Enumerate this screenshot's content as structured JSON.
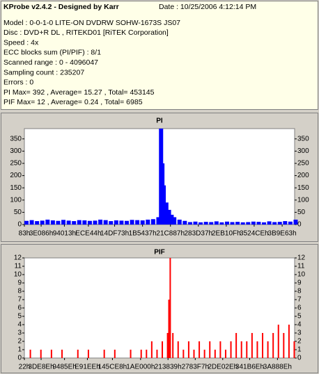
{
  "header": {
    "title": "KProbe v2.4.2 - Designed by Karr",
    "date": "Date : 10/25/2006 4:12:14 PM",
    "lines": [
      "Model : 0-0-1-0 LITE-ON DVDRW SOHW-1673S JS07",
      "Disc : DVD+R DL , RITEKD01 [RiTEK Corporation]",
      "Speed : 4x",
      "ECC blocks sum (PI/PIF) : 8/1",
      "Scanned range : 0 - 4096047",
      "Sampling count : 235207",
      "Errors : 0",
      "PI Max= 392 , Average= 15.27 , Total= 453145",
      "PIF Max= 12 , Average= 0.24 , Total= 6985"
    ]
  },
  "chart_data": [
    {
      "type": "bar",
      "title": "PI",
      "color": "#0000ff",
      "x": [
        0,
        80000,
        160000,
        240000,
        320000,
        400000,
        480000,
        560000,
        640000,
        720000,
        800000,
        880000,
        960000,
        1040000,
        1120000,
        1200000,
        1280000,
        1360000,
        1440000,
        1520000,
        1600000,
        1680000,
        1760000,
        1840000,
        1920000,
        2000000,
        2040000,
        2060000,
        2080000,
        2120000,
        2160000,
        2200000,
        2240000,
        2320000,
        2400000,
        2480000,
        2560000,
        2640000,
        2720000,
        2800000,
        2880000,
        2960000,
        3040000,
        3120000,
        3200000,
        3280000,
        3360000,
        3440000,
        3520000,
        3600000,
        3680000,
        3760000,
        3840000,
        3920000,
        4000000,
        4080000
      ],
      "values": [
        15,
        18,
        14,
        16,
        20,
        17,
        15,
        19,
        16,
        14,
        18,
        17,
        15,
        16,
        20,
        18,
        14,
        17,
        16,
        15,
        19,
        18,
        17,
        20,
        22,
        30,
        392,
        250,
        160,
        90,
        60,
        40,
        30,
        20,
        15,
        10,
        12,
        9,
        11,
        10,
        13,
        9,
        12,
        10,
        11,
        9,
        10,
        12,
        11,
        9,
        13,
        10,
        11,
        14,
        12,
        20
      ],
      "xlim": [
        0,
        4096047
      ],
      "ylim": [
        0,
        392
      ],
      "xticks": [
        {
          "value": 131,
          "label": "83h"
        },
        {
          "value": 254086,
          "label": "3E086h"
        },
        {
          "value": 606227,
          "label": "94013h"
        },
        {
          "value": 970308,
          "label": "ECE44h"
        },
        {
          "value": 1367923,
          "label": "14DF73h"
        },
        {
          "value": 1791031,
          "label": "1B5437h"
        },
        {
          "value": 2214023,
          "label": "21C887h"
        },
        {
          "value": 2637111,
          "label": "283D37h"
        },
        {
          "value": 3059983,
          "label": "2EB10Fh"
        },
        {
          "value": 3482830,
          "label": "3524CEh"
        },
        {
          "value": 3907171,
          "label": "3B9E63h"
        }
      ],
      "yticks": [
        0,
        50,
        100,
        150,
        200,
        250,
        300,
        350
      ]
    },
    {
      "type": "bar",
      "title": "PIF",
      "color": "#ff0000",
      "x": [
        0,
        80000,
        160000,
        240000,
        320000,
        400000,
        480000,
        560000,
        640000,
        720000,
        800000,
        880000,
        960000,
        1040000,
        1120000,
        1200000,
        1280000,
        1360000,
        1440000,
        1520000,
        1600000,
        1680000,
        1760000,
        1840000,
        1920000,
        2000000,
        2080000,
        2160000,
        2180000,
        2200000,
        2240000,
        2320000,
        2400000,
        2480000,
        2560000,
        2640000,
        2720000,
        2800000,
        2880000,
        2960000,
        3040000,
        3120000,
        3200000,
        3280000,
        3360000,
        3440000,
        3520000,
        3600000,
        3680000,
        3760000,
        3840000,
        3920000,
        4000000,
        4080000
      ],
      "values": [
        0,
        1,
        0,
        1,
        0,
        1,
        0,
        1,
        0,
        0,
        1,
        0,
        1,
        0,
        0,
        1,
        0,
        1,
        0,
        0,
        1,
        0,
        1,
        1,
        2,
        1,
        2,
        3,
        7,
        12,
        3,
        2,
        1,
        2,
        1,
        2,
        1,
        2,
        1,
        2,
        1,
        2,
        3,
        2,
        2,
        3,
        2,
        3,
        2,
        3,
        4,
        3,
        4,
        2
      ],
      "xlim": [
        0,
        4096047
      ],
      "ylim": [
        0,
        12
      ],
      "xticks": [
        {
          "value": 34,
          "label": "22h"
        },
        {
          "value": 253582,
          "label": "3DE8Eh"
        },
        {
          "value": 608350,
          "label": "9485Eh"
        },
        {
          "value": 954862,
          "label": "E91EEh"
        },
        {
          "value": 1334504,
          "label": "145CE8h"
        },
        {
          "value": 1761280,
          "label": "1AE000h"
        },
        {
          "value": 2177081,
          "label": "213839h"
        },
        {
          "value": 2589687,
          "label": "2783F7h"
        },
        {
          "value": 3006510,
          "label": "2DE02Eh"
        },
        {
          "value": 3414894,
          "label": "341B6Eh"
        },
        {
          "value": 3836046,
          "label": "3A888Eh"
        }
      ],
      "yticks": [
        0,
        1,
        2,
        3,
        4,
        5,
        6,
        7,
        8,
        9,
        10,
        11,
        12
      ]
    }
  ]
}
